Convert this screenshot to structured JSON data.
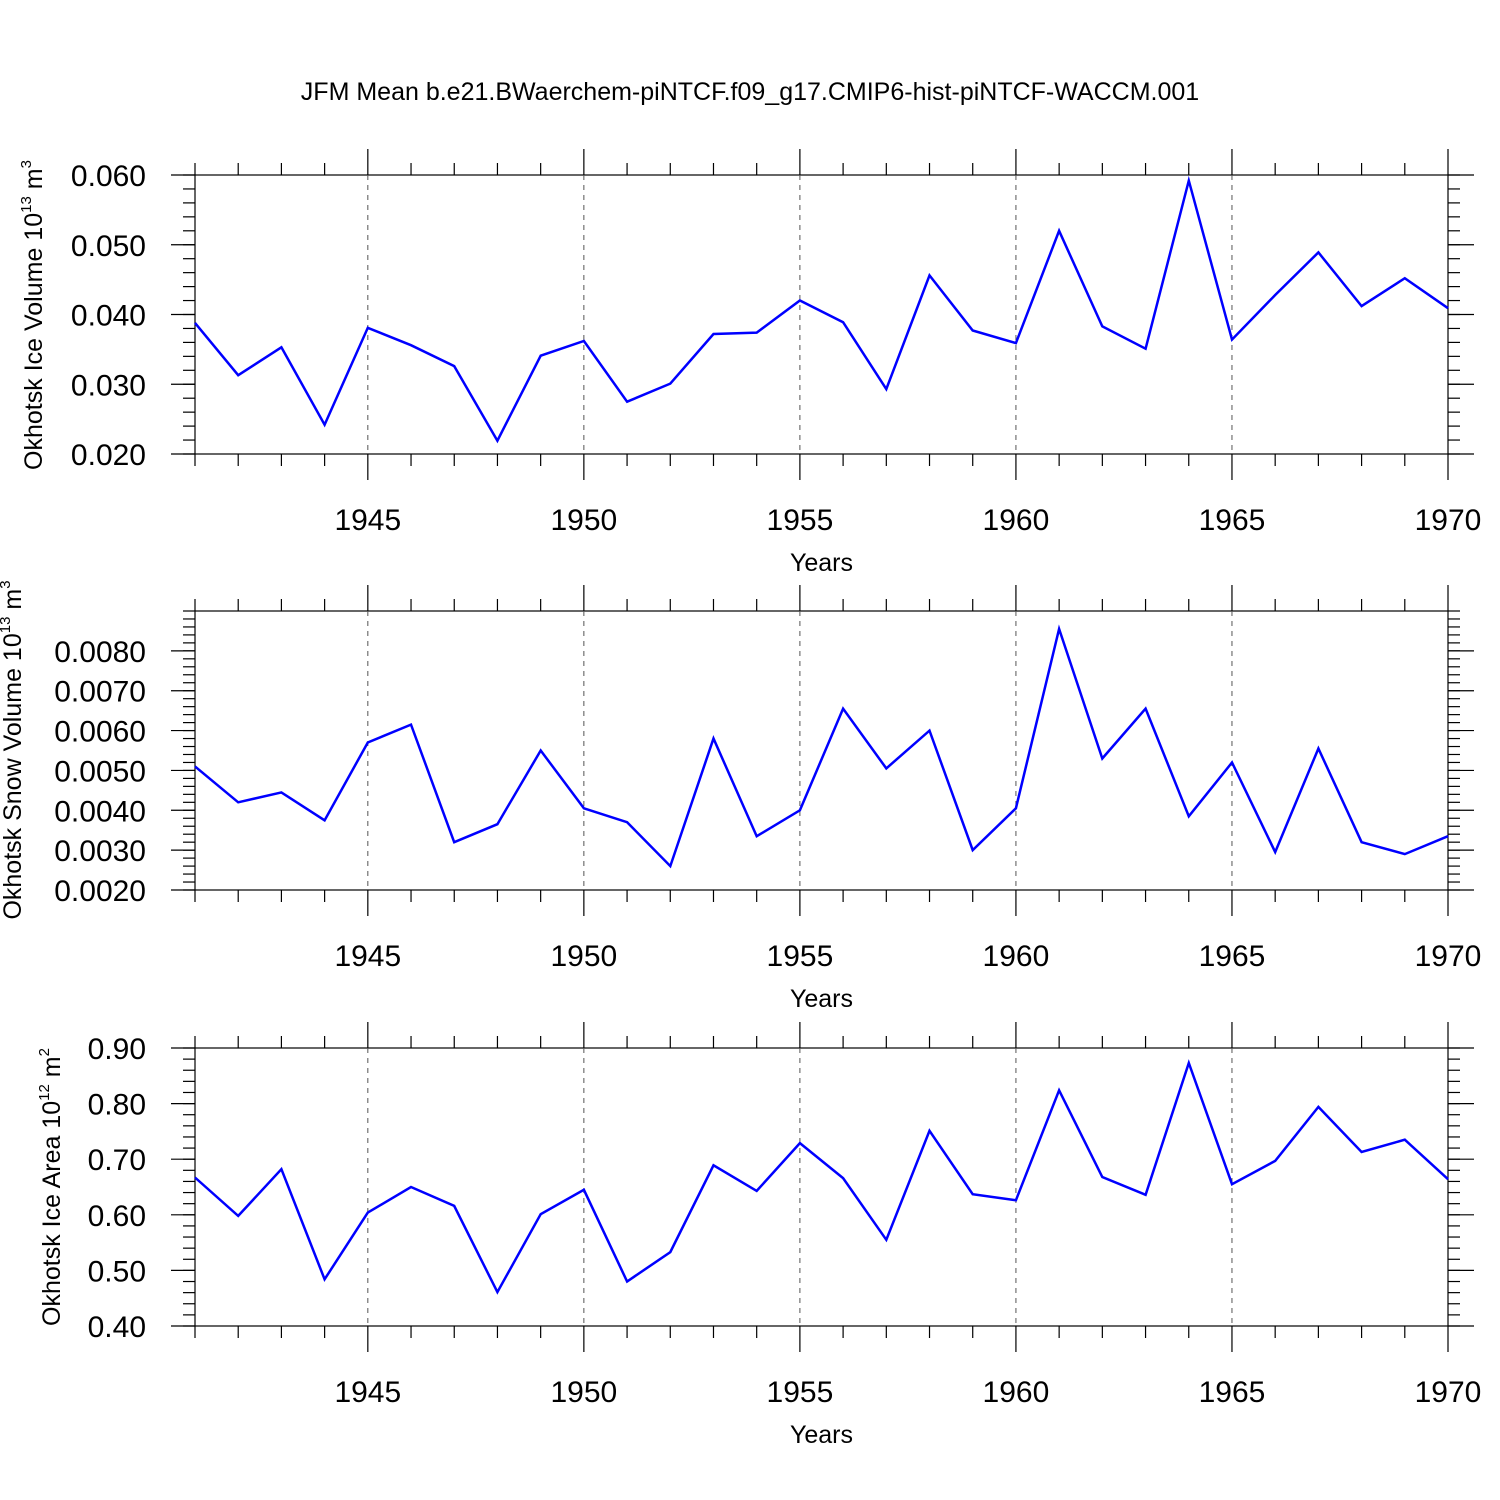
{
  "title": "JFM Mean b.e21.BWaerchem-piNTCF.f09_g17.CMIP6-hist-piNTCF-WACCM.001",
  "line_color": "#0000ff",
  "chart_data": [
    {
      "type": "line",
      "ylabel": "Okhotsk Ice Volume 10",
      "ylabel_exp": "13",
      "ylabel_unit": " m",
      "ylabel_unit_exp": "3",
      "xlabel": "Years",
      "xlim": [
        1941,
        1970
      ],
      "ylim": [
        0.02,
        0.06
      ],
      "grid": true,
      "xticks": [
        "1945",
        "1950",
        "1955",
        "1960",
        "1965",
        "1970"
      ],
      "yticks": [
        "0.020",
        "0.030",
        "0.040",
        "0.050",
        "0.060"
      ],
      "series": [
        {
          "name": "Okhotsk Ice Volume",
          "x": [
            1941,
            1942,
            1943,
            1944,
            1945,
            1946,
            1947,
            1948,
            1949,
            1950,
            1951,
            1952,
            1953,
            1954,
            1955,
            1956,
            1957,
            1958,
            1959,
            1960,
            1961,
            1962,
            1963,
            1964,
            1965,
            1966,
            1967,
            1968,
            1969,
            1970
          ],
          "values": [
            0.0388,
            0.0313,
            0.0353,
            0.0242,
            0.0381,
            0.0356,
            0.0326,
            0.0219,
            0.0341,
            0.0362,
            0.0275,
            0.0301,
            0.0372,
            0.0374,
            0.042,
            0.0389,
            0.0293,
            0.0456,
            0.0377,
            0.0359,
            0.052,
            0.0383,
            0.0351,
            0.0592,
            0.0364,
            0.0428,
            0.0489,
            0.0412,
            0.0452,
            0.0409
          ]
        }
      ]
    },
    {
      "type": "line",
      "ylabel": "Okhotsk Snow Volume 10",
      "ylabel_exp": "13",
      "ylabel_unit": " m",
      "ylabel_unit_exp": "3",
      "xlabel": "Years",
      "xlim": [
        1941,
        1970
      ],
      "ylim": [
        0.002,
        0.009
      ],
      "grid": true,
      "xticks": [
        "1945",
        "1950",
        "1955",
        "1960",
        "1965",
        "1970"
      ],
      "yticks": [
        "0.0020",
        "0.0030",
        "0.0040",
        "0.0050",
        "0.0060",
        "0.0070",
        "0.0080"
      ],
      "series": [
        {
          "name": "Okhotsk Snow Volume",
          "x": [
            1941,
            1942,
            1943,
            1944,
            1945,
            1946,
            1947,
            1948,
            1949,
            1950,
            1951,
            1952,
            1953,
            1954,
            1955,
            1956,
            1957,
            1958,
            1959,
            1960,
            1961,
            1962,
            1963,
            1964,
            1965,
            1966,
            1967,
            1968,
            1969,
            1970
          ],
          "values": [
            0.0051,
            0.0042,
            0.00445,
            0.00375,
            0.0057,
            0.00615,
            0.0032,
            0.00365,
            0.0055,
            0.00405,
            0.0037,
            0.0026,
            0.0058,
            0.00335,
            0.004,
            0.00655,
            0.00505,
            0.006,
            0.003,
            0.00405,
            0.00855,
            0.0053,
            0.00655,
            0.00385,
            0.0052,
            0.00295,
            0.00555,
            0.0032,
            0.0029,
            0.00335
          ]
        }
      ]
    },
    {
      "type": "line",
      "ylabel": "Okhotsk Ice Area 10",
      "ylabel_exp": "12",
      "ylabel_unit": " m",
      "ylabel_unit_exp": "2",
      "xlabel": "Years",
      "xlim": [
        1941,
        1970
      ],
      "ylim": [
        0.4,
        0.9
      ],
      "grid": true,
      "xticks": [
        "1945",
        "1950",
        "1955",
        "1960",
        "1965",
        "1970"
      ],
      "yticks": [
        "0.40",
        "0.50",
        "0.60",
        "0.70",
        "0.80",
        "0.90"
      ],
      "series": [
        {
          "name": "Okhotsk Ice Area",
          "x": [
            1941,
            1942,
            1943,
            1944,
            1945,
            1946,
            1947,
            1948,
            1949,
            1950,
            1951,
            1952,
            1953,
            1954,
            1955,
            1956,
            1957,
            1958,
            1959,
            1960,
            1961,
            1962,
            1963,
            1964,
            1965,
            1966,
            1967,
            1968,
            1969,
            1970
          ],
          "values": [
            0.667,
            0.598,
            0.682,
            0.484,
            0.604,
            0.65,
            0.616,
            0.461,
            0.601,
            0.645,
            0.48,
            0.533,
            0.689,
            0.643,
            0.729,
            0.666,
            0.555,
            0.751,
            0.637,
            0.626,
            0.824,
            0.668,
            0.636,
            0.873,
            0.655,
            0.697,
            0.794,
            0.713,
            0.735,
            0.664
          ]
        }
      ]
    }
  ]
}
